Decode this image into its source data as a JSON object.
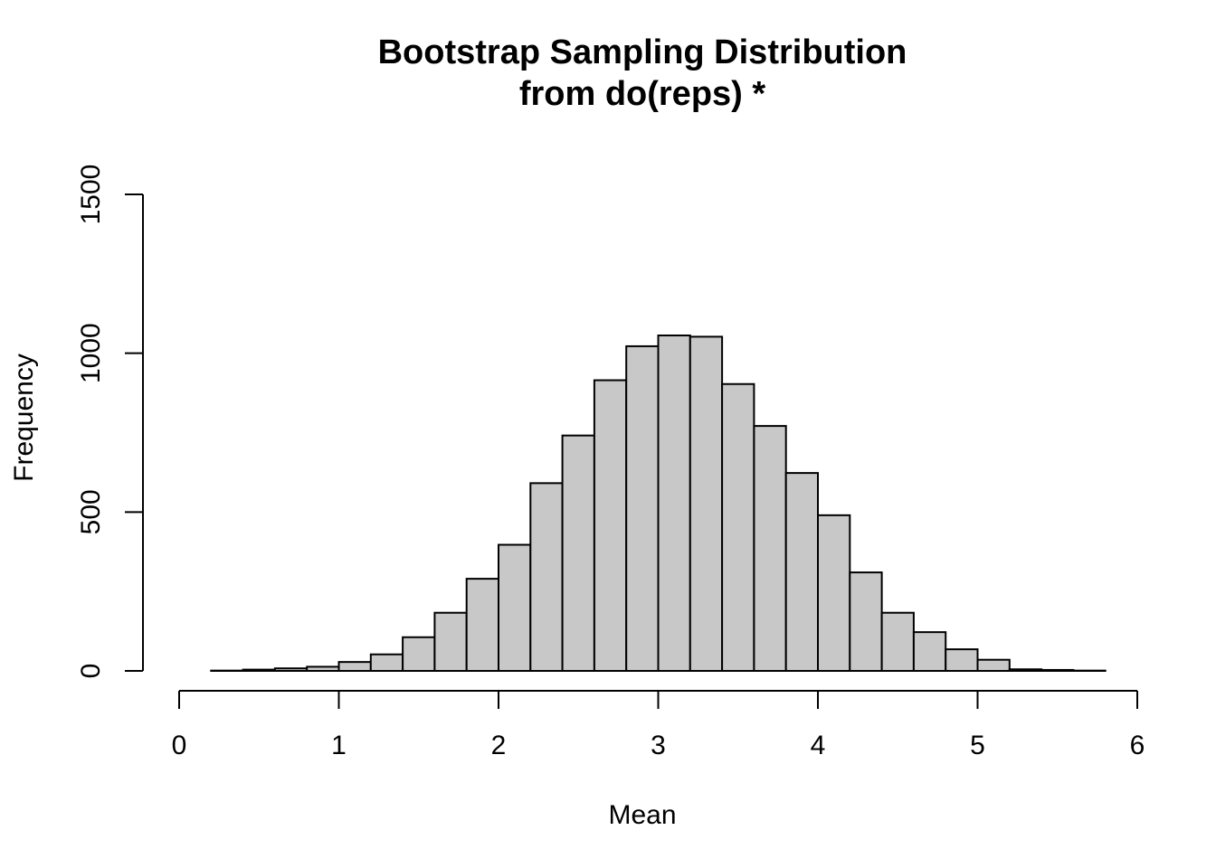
{
  "chart_data": {
    "type": "bar",
    "title": "Bootstrap Sampling Distribution",
    "subtitle": "from do(reps) *",
    "xlabel": "Mean",
    "ylabel": "Frequency",
    "xlim": [
      0,
      6
    ],
    "ylim": [
      0,
      1500
    ],
    "x_ticks": [
      "0",
      "1",
      "2",
      "3",
      "4",
      "5",
      "6"
    ],
    "y_ticks": [
      "0",
      "500",
      "1000",
      "1500"
    ],
    "bin_width": 0.2,
    "bin_start": 0,
    "values": [
      0,
      1,
      4,
      8,
      13,
      28,
      52,
      106,
      183,
      290,
      397,
      591,
      741,
      915,
      1022,
      1056,
      1052,
      903,
      771,
      623,
      490,
      310,
      183,
      122,
      68,
      35,
      5,
      3,
      1,
      0
    ],
    "bar_color": "#c8c8c8",
    "grid": false
  }
}
